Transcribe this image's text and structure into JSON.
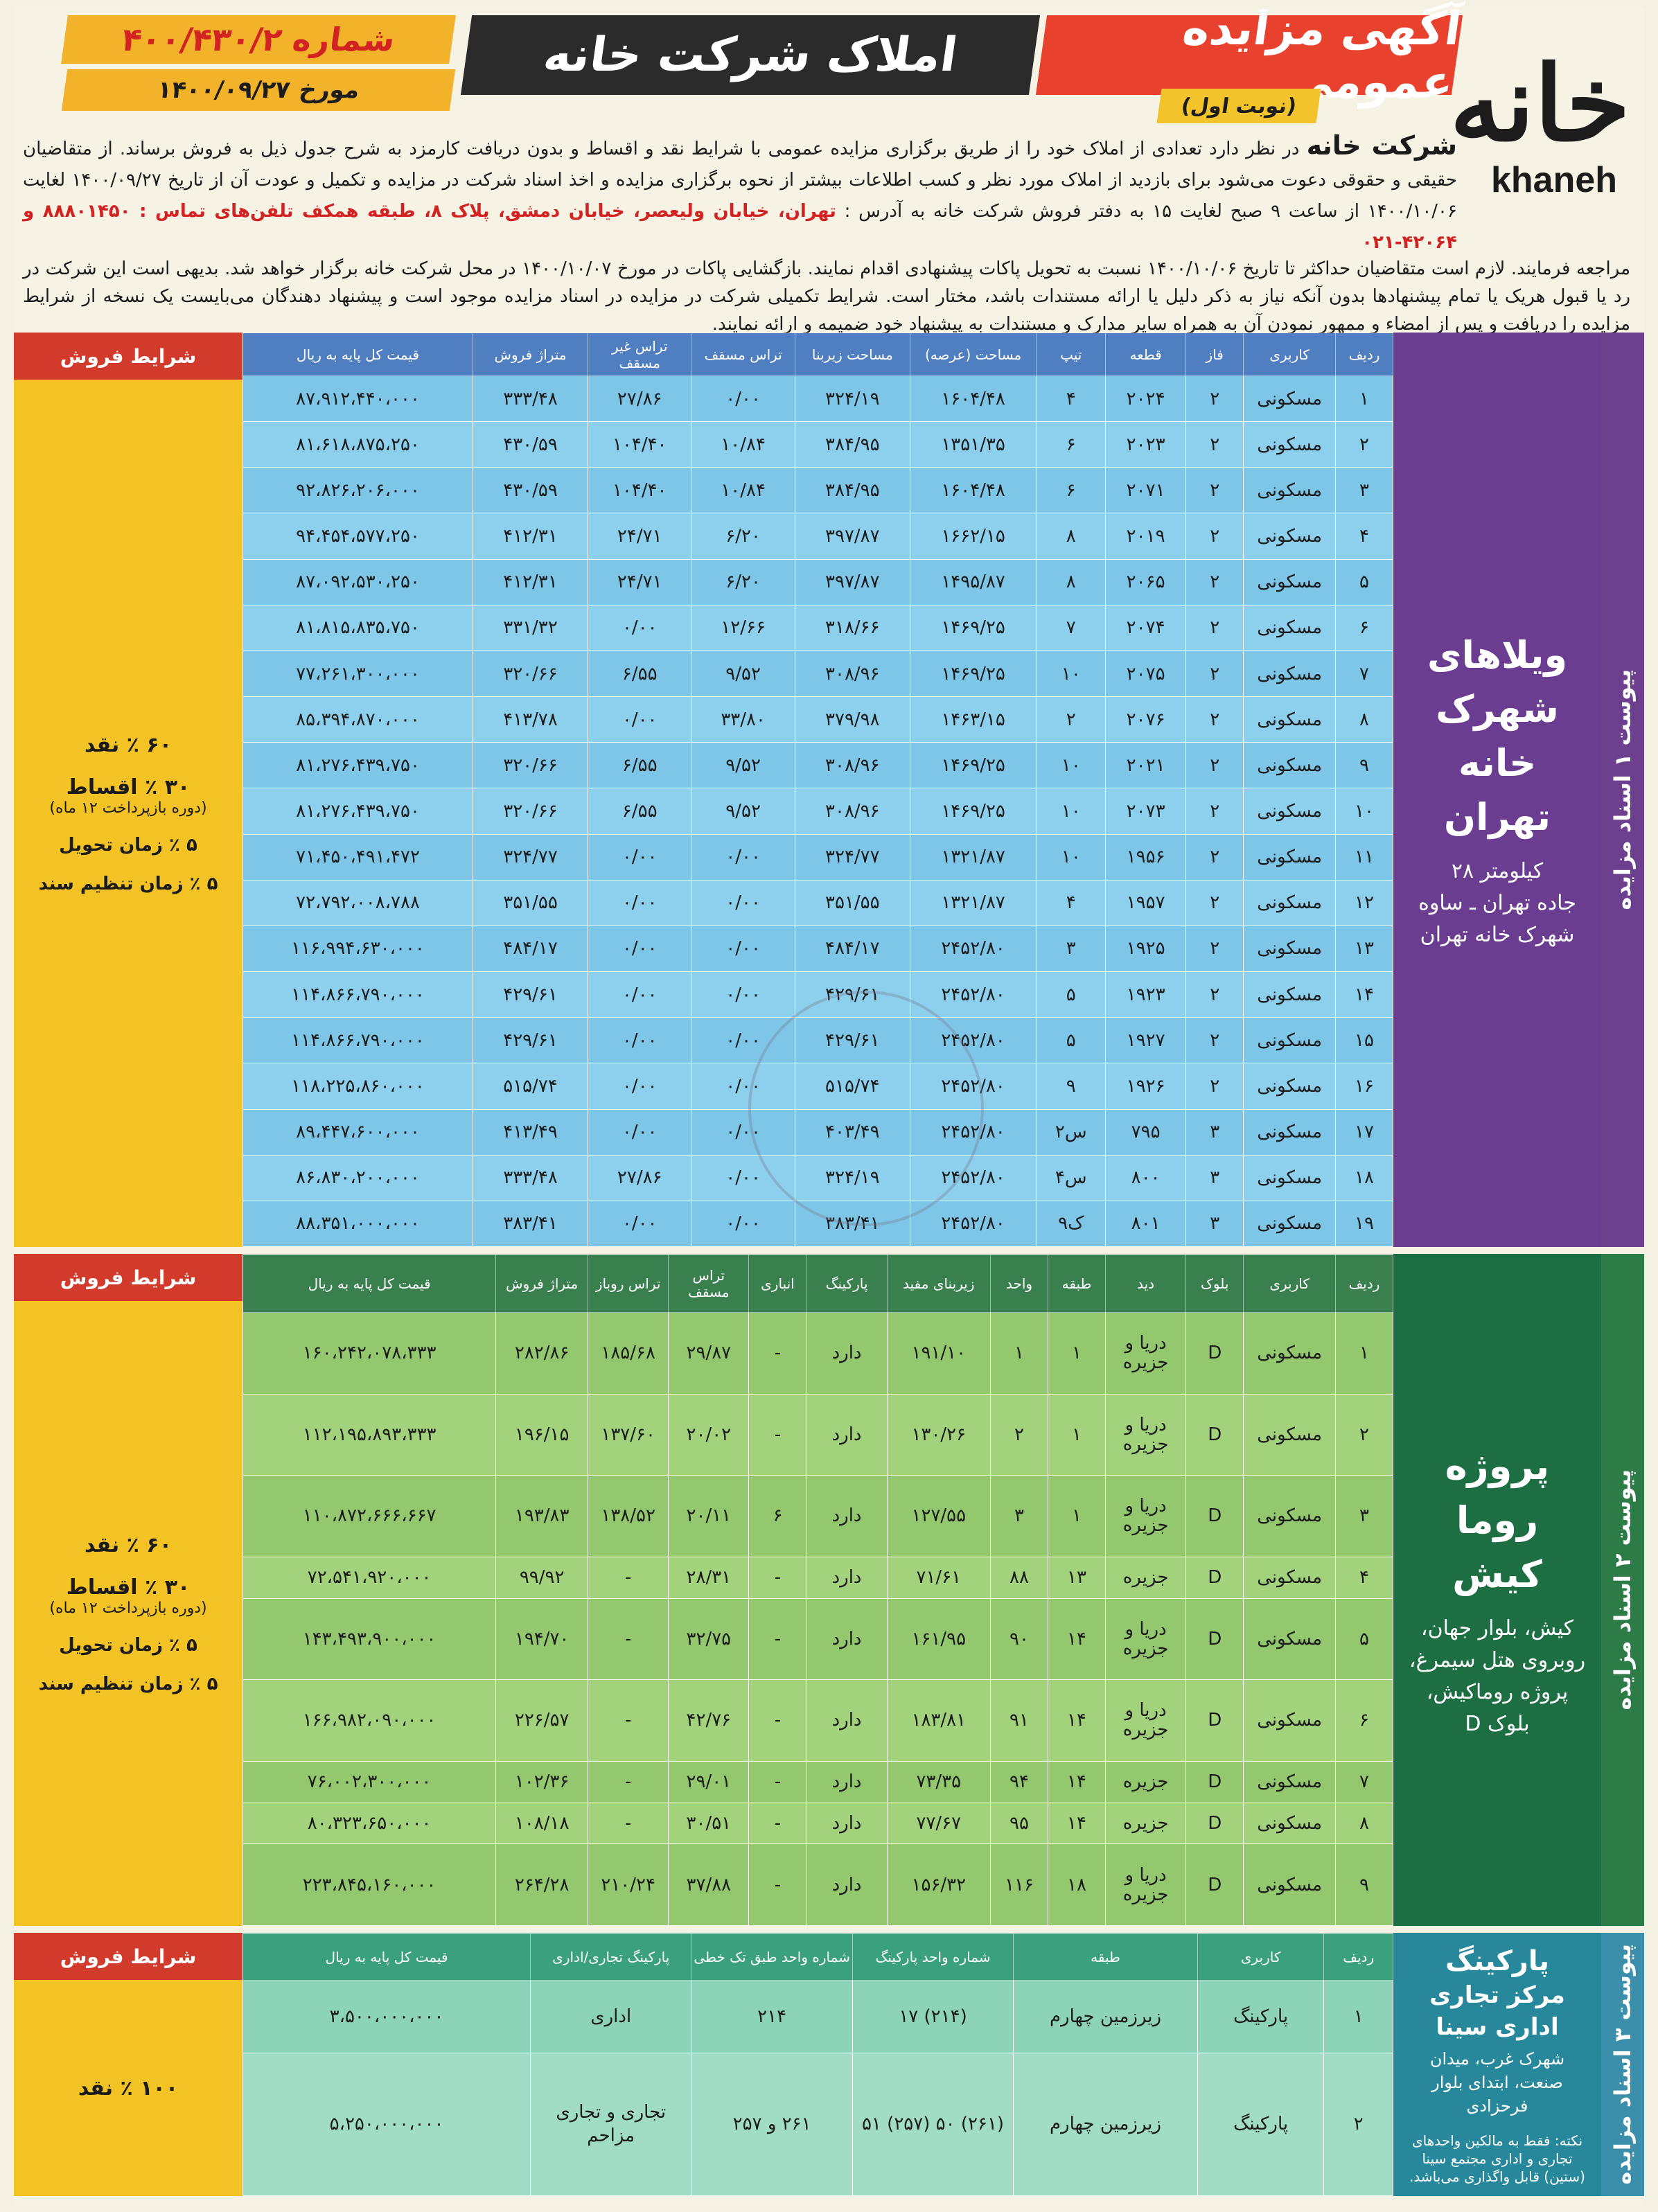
{
  "header": {
    "logo_fa": "خانه",
    "logo_en": "khaneh",
    "title": "آگهی مزایده عمومی",
    "round": "(نوبت اول)",
    "company_title": "املاک شرکت خانه",
    "number": "شماره ۴۰۰/۴۳۰/۲",
    "date_label": "مورخ",
    "date": "۱۴۰۰/۰۹/۲۷"
  },
  "intro": {
    "company": "شرکت خانه",
    "p1": "در نظر دارد تعدادی از املاک خود را از طریق برگزاری مزایده عمومی با شرایط نقد و اقساط و بدون دریافت کارمزد به شرح جدول ذیل به فروش برساند. از متقاضیان حقیقی و حقوقی دعوت می‌شود برای بازدید از املاک مورد نظر و کسب اطلاعات بیشتر از نحوه برگزاری مزایده و اخذ اسناد شرکت در مزایده و تکمیل و عودت آن از تاریخ ۱۴۰۰/۰۹/۲۷ لغایت ۱۴۰۰/۱۰/۰۶ از ساعت ۹ صبح لغایت ۱۵ به دفتر فروش شرکت خانه به آدرس :",
    "address": "تهران، خیابان ولیعصر، خیابان دمشق، پلاک ۸، طبقه همکف تلفن‌های تماس : ۸۸۸۰۱۴۵۰ و ۴۲۰۶۴-۰۲۱",
    "p2": "مراجعه فرمایند. لازم است متقاضیان حداکثر تا تاریخ ۱۴۰۰/۱۰/۰۶ نسبت به تحویل پاکات پیشنهادی اقدام نمایند. بازگشایی پاکات در مورخ ۱۴۰۰/۱۰/۰۷ در محل شرکت خانه برگزار خواهد شد.",
    "p3": "بدیهی است این شرکت در رد یا قبول هریک یا تمام پیشنهادها بدون آنکه نیاز به ذکر دلیل یا ارائه مستندات باشد، مختار است. شرایط تکمیلی شرکت در مزایده در اسناد مزایده موجود است و پیشنهاد دهندگان می‌بایست یک نسخه از شرایط مزایده را دریافت و پس از امضاء و ممهور نمودن آن به همراه سایر مدارک و مستندات به پیشنهاد خود ضمیمه و ارائه نمایند."
  },
  "terms": {
    "header": "شرایط فروش",
    "cash60": "۶۰ ٪ نقد",
    "inst30": "۳۰ ٪ اقساط",
    "inst_note": "(دوره بازپرداخت ۱۲ ماه)",
    "delivery5": "۵ ٪ زمان تحویل",
    "deed5": "۵ ٪ زمان تنظیم سند",
    "cash100": "۱۰۰ ٪ نقد"
  },
  "s1": {
    "label": "پیوست ۱ اسناد مزایده",
    "project": "ویلاهای شهرک خانه تهران",
    "loc1": "کیلومتر ۲۸",
    "loc2": "جاده تهران ـ ساوه",
    "loc3": "شهرک خانه تهران",
    "headers": [
      "ردیف",
      "کاربری",
      "فاز",
      "قطعه",
      "تیپ",
      "مساحت (عرصه)",
      "مساحت زیربنا",
      "تراس مسقف",
      "تراس غیر مسقف",
      "متراژ فروش",
      "قیمت کل پایه به ریال"
    ],
    "rows": [
      [
        "۱",
        "مسکونی",
        "۲",
        "۲۰۲۴",
        "۴",
        "۱۶۰۴/۴۸",
        "۳۲۴/۱۹",
        "۰/۰۰",
        "۲۷/۸۶",
        "۳۳۳/۴۸",
        "۸۷،۹۱۲،۴۴۰،۰۰۰"
      ],
      [
        "۲",
        "مسکونی",
        "۲",
        "۲۰۲۳",
        "۶",
        "۱۳۵۱/۳۵",
        "۳۸۴/۹۵",
        "۱۰/۸۴",
        "۱۰۴/۴۰",
        "۴۳۰/۵۹",
        "۸۱،۶۱۸،۸۷۵،۲۵۰"
      ],
      [
        "۳",
        "مسکونی",
        "۲",
        "۲۰۷۱",
        "۶",
        "۱۶۰۴/۴۸",
        "۳۸۴/۹۵",
        "۱۰/۸۴",
        "۱۰۴/۴۰",
        "۴۳۰/۵۹",
        "۹۲،۸۲۶،۲۰۶،۰۰۰"
      ],
      [
        "۴",
        "مسکونی",
        "۲",
        "۲۰۱۹",
        "۸",
        "۱۶۶۲/۱۵",
        "۳۹۷/۸۷",
        "۶/۲۰",
        "۲۴/۷۱",
        "۴۱۲/۳۱",
        "۹۴،۴۵۴،۵۷۷،۲۵۰"
      ],
      [
        "۵",
        "مسکونی",
        "۲",
        "۲۰۶۵",
        "۸",
        "۱۴۹۵/۸۷",
        "۳۹۷/۸۷",
        "۶/۲۰",
        "۲۴/۷۱",
        "۴۱۲/۳۱",
        "۸۷،۰۹۲،۵۳۰،۲۵۰"
      ],
      [
        "۶",
        "مسکونی",
        "۲",
        "۲۰۷۴",
        "۷",
        "۱۴۶۹/۲۵",
        "۳۱۸/۶۶",
        "۱۲/۶۶",
        "۰/۰۰",
        "۳۳۱/۳۲",
        "۸۱،۸۱۵،۸۳۵،۷۵۰"
      ],
      [
        "۷",
        "مسکونی",
        "۲",
        "۲۰۷۵",
        "۱۰",
        "۱۴۶۹/۲۵",
        "۳۰۸/۹۶",
        "۹/۵۲",
        "۶/۵۵",
        "۳۲۰/۶۶",
        "۷۷،۲۶۱،۳۰۰،۰۰۰"
      ],
      [
        "۸",
        "مسکونی",
        "۲",
        "۲۰۷۶",
        "۲",
        "۱۴۶۳/۱۵",
        "۳۷۹/۹۸",
        "۳۳/۸۰",
        "۰/۰۰",
        "۴۱۳/۷۸",
        "۸۵،۳۹۴،۸۷۰،۰۰۰"
      ],
      [
        "۹",
        "مسکونی",
        "۲",
        "۲۰۲۱",
        "۱۰",
        "۱۴۶۹/۲۵",
        "۳۰۸/۹۶",
        "۹/۵۲",
        "۶/۵۵",
        "۳۲۰/۶۶",
        "۸۱،۲۷۶،۴۳۹،۷۵۰"
      ],
      [
        "۱۰",
        "مسکونی",
        "۲",
        "۲۰۷۳",
        "۱۰",
        "۱۴۶۹/۲۵",
        "۳۰۸/۹۶",
        "۹/۵۲",
        "۶/۵۵",
        "۳۲۰/۶۶",
        "۸۱،۲۷۶،۴۳۹،۷۵۰"
      ],
      [
        "۱۱",
        "مسکونی",
        "۲",
        "۱۹۵۶",
        "۱۰",
        "۱۳۲۱/۸۷",
        "۳۲۴/۷۷",
        "۰/۰۰",
        "۰/۰۰",
        "۳۲۴/۷۷",
        "۷۱،۴۵۰،۴۹۱،۴۷۲"
      ],
      [
        "۱۲",
        "مسکونی",
        "۲",
        "۱۹۵۷",
        "۴",
        "۱۳۲۱/۸۷",
        "۳۵۱/۵۵",
        "۰/۰۰",
        "۰/۰۰",
        "۳۵۱/۵۵",
        "۷۲،۷۹۲،۰۰۸،۷۸۸"
      ],
      [
        "۱۳",
        "مسکونی",
        "۲",
        "۱۹۲۵",
        "۳",
        "۲۴۵۲/۸۰",
        "۴۸۴/۱۷",
        "۰/۰۰",
        "۰/۰۰",
        "۴۸۴/۱۷",
        "۱۱۶،۹۹۴،۶۳۰،۰۰۰"
      ],
      [
        "۱۴",
        "مسکونی",
        "۲",
        "۱۹۲۳",
        "۵",
        "۲۴۵۲/۸۰",
        "۴۲۹/۶۱",
        "۰/۰۰",
        "۰/۰۰",
        "۴۲۹/۶۱",
        "۱۱۴،۸۶۶،۷۹۰،۰۰۰"
      ],
      [
        "۱۵",
        "مسکونی",
        "۲",
        "۱۹۲۷",
        "۵",
        "۲۴۵۲/۸۰",
        "۴۲۹/۶۱",
        "۰/۰۰",
        "۰/۰۰",
        "۴۲۹/۶۱",
        "۱۱۴،۸۶۶،۷۹۰،۰۰۰"
      ],
      [
        "۱۶",
        "مسکونی",
        "۲",
        "۱۹۲۶",
        "۹",
        "۲۴۵۲/۸۰",
        "۵۱۵/۷۴",
        "۰/۰۰",
        "۰/۰۰",
        "۵۱۵/۷۴",
        "۱۱۸،۲۲۵،۸۶۰،۰۰۰"
      ],
      [
        "۱۷",
        "مسکونی",
        "۳",
        "۷۹۵",
        "س۲",
        "۲۴۵۲/۸۰",
        "۴۰۳/۴۹",
        "۰/۰۰",
        "۰/۰۰",
        "۴۱۳/۴۹",
        "۸۹،۴۴۷،۶۰۰،۰۰۰"
      ],
      [
        "۱۸",
        "مسکونی",
        "۳",
        "۸۰۰",
        "س۴",
        "۲۴۵۲/۸۰",
        "۳۲۴/۱۹",
        "۰/۰۰",
        "۲۷/۸۶",
        "۳۳۳/۴۸",
        "۸۶،۸۳۰،۲۰۰،۰۰۰"
      ],
      [
        "۱۹",
        "مسکونی",
        "۳",
        "۸۰۱",
        "ک۹",
        "۲۴۵۲/۸۰",
        "۳۸۳/۴۱",
        "۰/۰۰",
        "۰/۰۰",
        "۳۸۳/۴۱",
        "۸۸،۳۵۱،۰۰۰،۰۰۰"
      ]
    ]
  },
  "s2": {
    "label": "پیوست ۲ اسناد مزایده",
    "project": "پروژه روما کیش",
    "loc": "کیش، بلوار جهان، روبروی هتل سیمرغ، پروژه روماکیش، بلوک D",
    "headers": [
      "ردیف",
      "کاربری",
      "بلوک",
      "دید",
      "طبقه",
      "واحد",
      "زیربنای مفید",
      "پارکینگ",
      "انباری",
      "تراس مسقف",
      "تراس روباز",
      "متراژ فروش",
      "قیمت کل پایه به ریال"
    ],
    "rows": [
      [
        "۱",
        "مسکونی",
        "D",
        "دریا و جزیره",
        "۱",
        "۱",
        "۱۹۱/۱۰",
        "دارد",
        "-",
        "۲۹/۸۷",
        "۱۸۵/۶۸",
        "۲۸۲/۸۶",
        "۱۶۰،۲۴۲،۰۷۸،۳۳۳"
      ],
      [
        "۲",
        "مسکونی",
        "D",
        "دریا و جزیره",
        "۱",
        "۲",
        "۱۳۰/۲۶",
        "دارد",
        "-",
        "۲۰/۰۲",
        "۱۳۷/۶۰",
        "۱۹۶/۱۵",
        "۱۱۲،۱۹۵،۸۹۳،۳۳۳"
      ],
      [
        "۳",
        "مسکونی",
        "D",
        "دریا و جزیره",
        "۱",
        "۳",
        "۱۲۷/۵۵",
        "دارد",
        "۶",
        "۲۰/۱۱",
        "۱۳۸/۵۲",
        "۱۹۳/۸۳",
        "۱۱۰،۸۷۲،۶۶۶،۶۶۷"
      ],
      [
        "۴",
        "مسکونی",
        "D",
        "جزیره",
        "۱۳",
        "۸۸",
        "۷۱/۶۱",
        "دارد",
        "-",
        "۲۸/۳۱",
        "-",
        "۹۹/۹۲",
        "۷۲،۵۴۱،۹۲۰،۰۰۰"
      ],
      [
        "۵",
        "مسکونی",
        "D",
        "دریا و جزیره",
        "۱۴",
        "۹۰",
        "۱۶۱/۹۵",
        "دارد",
        "-",
        "۳۲/۷۵",
        "-",
        "۱۹۴/۷۰",
        "۱۴۳،۴۹۳،۹۰۰،۰۰۰"
      ],
      [
        "۶",
        "مسکونی",
        "D",
        "دریا و جزیره",
        "۱۴",
        "۹۱",
        "۱۸۳/۸۱",
        "دارد",
        "-",
        "۴۲/۷۶",
        "-",
        "۲۲۶/۵۷",
        "۱۶۶،۹۸۲،۰۹۰،۰۰۰"
      ],
      [
        "۷",
        "مسکونی",
        "D",
        "جزیره",
        "۱۴",
        "۹۴",
        "۷۳/۳۵",
        "دارد",
        "-",
        "۲۹/۰۱",
        "-",
        "۱۰۲/۳۶",
        "۷۶،۰۰۲،۳۰۰،۰۰۰"
      ],
      [
        "۸",
        "مسکونی",
        "D",
        "جزیره",
        "۱۴",
        "۹۵",
        "۷۷/۶۷",
        "دارد",
        "-",
        "۳۰/۵۱",
        "-",
        "۱۰۸/۱۸",
        "۸۰،۳۲۳،۶۵۰،۰۰۰"
      ],
      [
        "۹",
        "مسکونی",
        "D",
        "دریا و جزیره",
        "۱۸",
        "۱۱۶",
        "۱۵۶/۳۲",
        "دارد",
        "-",
        "۳۷/۸۸",
        "۲۱۰/۲۴",
        "۲۶۴/۲۸",
        "۲۲۳،۸۴۵،۱۶۰،۰۰۰"
      ]
    ]
  },
  "s3": {
    "label": "پیوست ۳ اسناد مزایده",
    "project1": "پارکینگ",
    "project2": "مرکز تجاری اداری سینا",
    "loc": "شهرک غرب، میدان صنعت، ابتدای بلوار فرحزادی",
    "note": "نکته: فقط به مالکین واحدهای تجاری و اداری مجتمع سینا (ستین) قابل واگذاری می‌باشد.",
    "headers": [
      "ردیف",
      "کاربری",
      "طبقه",
      "شماره واحد پارکینگ",
      "شماره واحد طبق تک خطی",
      "پارکینگ تجاری/اداری",
      "قیمت کل پایه به ریال"
    ],
    "rows": [
      [
        "۱",
        "پارکینگ",
        "زیرزمین چهارم",
        "(۲۱۴) ۱۷",
        "۲۱۴",
        "اداری",
        "۳،۵۰۰،۰۰۰،۰۰۰"
      ],
      [
        "۲",
        "پارکینگ",
        "زیرزمین چهارم",
        "(۲۶۱) ۵۰ (۲۵۷) ۵۱",
        "۲۶۱ و ۲۵۷",
        "تجاری و تجاری مزاحم",
        "۵،۲۵۰،۰۰۰،۰۰۰"
      ]
    ]
  }
}
